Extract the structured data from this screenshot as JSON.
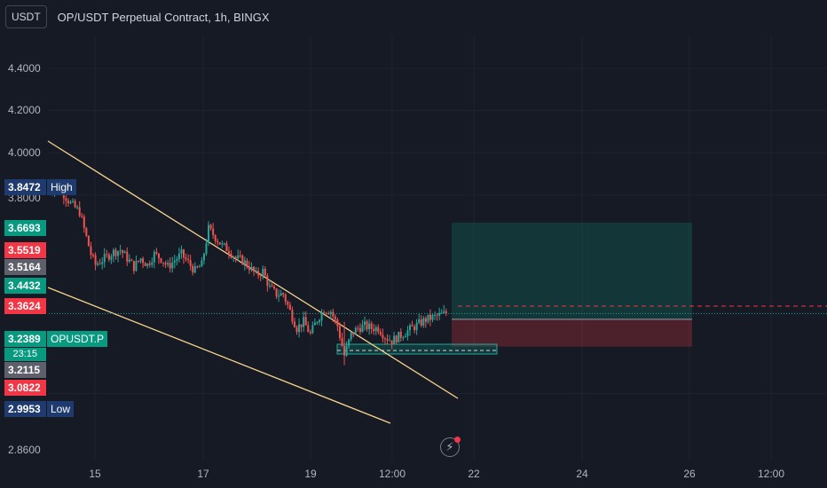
{
  "header": {
    "currency_button": "USDT",
    "title": "OP/USDT Perpetual Contract, 1h, BINGX"
  },
  "price_axis": {
    "ticks": [
      "4.4000",
      "4.2000",
      "4.0000",
      "3.8000",
      "2.8600"
    ],
    "tick_values": [
      4.4,
      4.2,
      4.0,
      3.8,
      2.86
    ]
  },
  "time_axis": {
    "ticks": [
      "15",
      "17",
      "19",
      "12:00",
      "22",
      "24",
      "26",
      "12:00"
    ]
  },
  "markers": {
    "high": {
      "price": "3.8472",
      "label": "High"
    },
    "low": {
      "price": "2.9953",
      "label": "Low"
    },
    "current": {
      "price": "3.2389",
      "label": "OPUSDT.P",
      "countdown": "23:15"
    },
    "levels": [
      {
        "price": "3.6693",
        "color": "#089981"
      },
      {
        "price": "3.5519",
        "color": "#f23645"
      },
      {
        "price": "3.5164",
        "color": "#5d606b"
      },
      {
        "price": "3.4432",
        "color": "#089981"
      },
      {
        "price": "3.3624",
        "color": "#f23645"
      },
      {
        "price": "3.2115",
        "color": "#5d606b"
      },
      {
        "price": "3.0822",
        "color": "#f23645"
      }
    ]
  },
  "colors": {
    "background": "#161a25",
    "up": "#26a69a",
    "down": "#ef5350",
    "trendline": "#f7d38b",
    "profit_zone": "#089981",
    "loss_zone": "#f23645"
  },
  "chart_data": {
    "type": "candlestick",
    "symbol": "OPUSDT.P",
    "interval": "1h",
    "ylim": [
      2.8,
      4.55
    ],
    "xlabel": "",
    "ylabel": "",
    "position": {
      "side": "long",
      "entry": 3.2115,
      "take_profit": 3.6693,
      "stop_loss": 3.0822
    },
    "trendlines": [
      {
        "name": "",
        "start": 4.05,
        "end": 3.02
      },
      {
        "name": "",
        "start": 3.44,
        "end": 2.93
      }
    ],
    "close_path": [
      [
        0,
        3.84
      ],
      [
        6,
        3.82
      ],
      [
        10,
        3.76
      ],
      [
        14,
        3.72
      ],
      [
        17,
        3.6
      ],
      [
        19,
        3.52
      ],
      [
        21,
        3.47
      ],
      [
        25,
        3.5
      ],
      [
        29,
        3.53
      ],
      [
        32,
        3.54
      ],
      [
        35,
        3.5
      ],
      [
        38,
        3.46
      ],
      [
        41,
        3.5
      ],
      [
        44,
        3.47
      ],
      [
        47,
        3.52
      ],
      [
        50,
        3.5
      ],
      [
        53,
        3.46
      ],
      [
        56,
        3.49
      ],
      [
        59,
        3.52
      ],
      [
        62,
        3.48
      ],
      [
        65,
        3.44
      ],
      [
        68,
        3.47
      ],
      [
        71,
        3.64
      ],
      [
        74,
        3.6
      ],
      [
        77,
        3.56
      ],
      [
        80,
        3.54
      ],
      [
        83,
        3.5
      ],
      [
        86,
        3.49
      ],
      [
        89,
        3.46
      ],
      [
        92,
        3.42
      ],
      [
        95,
        3.44
      ],
      [
        98,
        3.36
      ],
      [
        101,
        3.33
      ],
      [
        104,
        3.33
      ],
      [
        107,
        3.25
      ],
      [
        110,
        3.17
      ],
      [
        113,
        3.2
      ],
      [
        116,
        3.14
      ],
      [
        119,
        3.21
      ],
      [
        122,
        3.26
      ],
      [
        125,
        3.25
      ],
      [
        128,
        3.18
      ],
      [
        131,
        3.04
      ],
      [
        134,
        3.14
      ],
      [
        137,
        3.17
      ],
      [
        140,
        3.18
      ],
      [
        143,
        3.17
      ],
      [
        146,
        3.17
      ],
      [
        149,
        3.13
      ],
      [
        152,
        3.11
      ],
      [
        155,
        3.13
      ],
      [
        158,
        3.15
      ],
      [
        161,
        3.17
      ],
      [
        164,
        3.19
      ],
      [
        167,
        3.21
      ],
      [
        170,
        3.22
      ],
      [
        173,
        3.23
      ],
      [
        176,
        3.24
      ]
    ]
  }
}
